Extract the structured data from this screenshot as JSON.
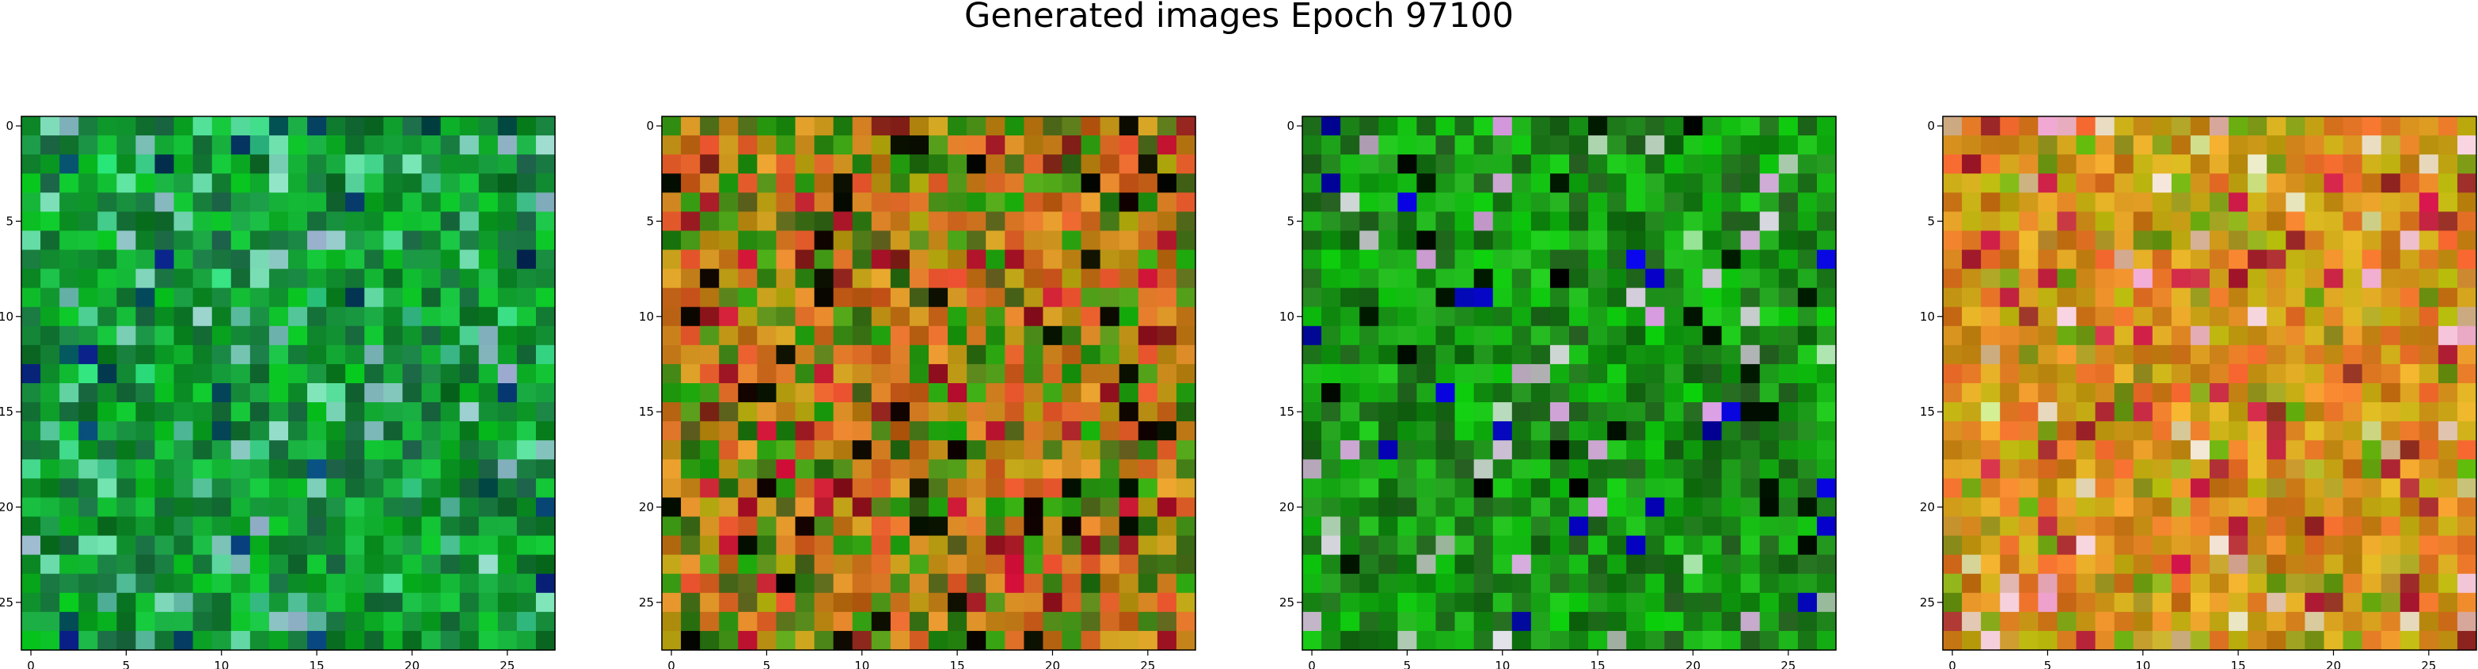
{
  "figure": {
    "title": "Generated images Epoch 97100"
  },
  "chart_data": [
    {
      "type": "heatmap",
      "palette": "green",
      "seed": 11,
      "image_size": 28,
      "xticks": [
        "0",
        "5",
        "10",
        "15",
        "20",
        "25"
      ],
      "yticks": [
        "0",
        "5",
        "10",
        "15",
        "20",
        "25"
      ]
    },
    {
      "type": "heatmap",
      "palette": "orange-green",
      "seed": 23,
      "image_size": 28,
      "xticks": [
        "0",
        "5",
        "10",
        "15",
        "20",
        "25"
      ],
      "yticks": [
        "0",
        "5",
        "10",
        "15",
        "20",
        "25"
      ]
    },
    {
      "type": "heatmap",
      "palette": "green-dark",
      "seed": 37,
      "image_size": 28,
      "xticks": [
        "0",
        "5",
        "10",
        "15",
        "20",
        "25"
      ],
      "yticks": [
        "0",
        "5",
        "10",
        "15",
        "20",
        "25"
      ]
    },
    {
      "type": "heatmap",
      "palette": "orange",
      "seed": 53,
      "image_size": 28,
      "xticks": [
        "0",
        "5",
        "10",
        "15",
        "20",
        "25"
      ],
      "yticks": [
        "0",
        "5",
        "10",
        "15",
        "20",
        "25"
      ]
    }
  ]
}
